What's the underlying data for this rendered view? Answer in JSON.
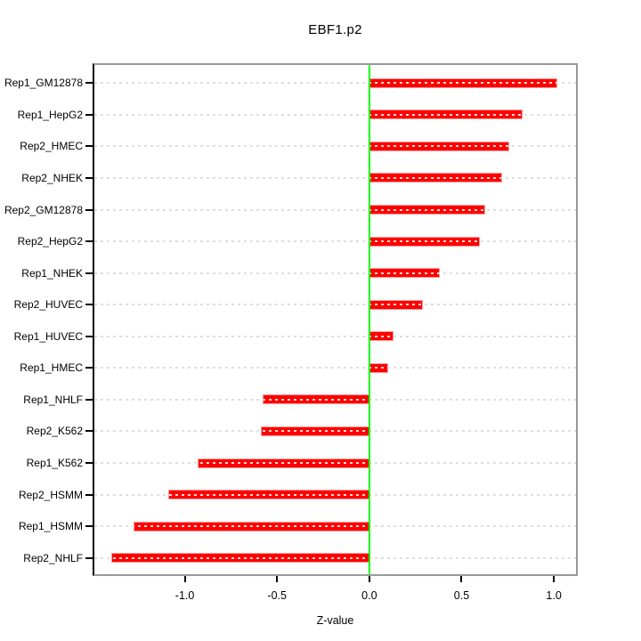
{
  "figure": {
    "title": "EBF1.p2",
    "xlabel": "Z-value"
  },
  "chart_data": {
    "type": "bar",
    "orientation": "horizontal",
    "title": "EBF1.p2",
    "xlabel": "Z-value",
    "ylabel": "",
    "categories": [
      "Rep1_GM12878",
      "Rep1_HepG2",
      "Rep2_HMEC",
      "Rep2_NHEK",
      "Rep2_GM12878",
      "Rep2_HepG2",
      "Rep1_NHEK",
      "Rep2_HUVEC",
      "Rep1_HUVEC",
      "Rep1_HMEC",
      "Rep1_NHLF",
      "Rep2_K562",
      "Rep1_K562",
      "Rep2_HSMM",
      "Rep1_HSMM",
      "Rep2_NHLF"
    ],
    "values": [
      1.02,
      0.83,
      0.76,
      0.72,
      0.63,
      0.6,
      0.38,
      0.29,
      0.13,
      0.1,
      -0.58,
      -0.59,
      -0.93,
      -1.09,
      -1.28,
      -1.4
    ],
    "x_ticks": [
      -1.0,
      -0.5,
      0.0,
      0.5,
      1.0
    ],
    "x_tick_labels": [
      "-1.0",
      "-0.5",
      "0.0",
      "0.5",
      "1.0"
    ],
    "xlim": [
      -1.49,
      1.12
    ],
    "zero_line_at": 0.0,
    "grid": "dotted horizontal gridline across each category row",
    "legend": null,
    "colors": {
      "bar_fill": "#ff0000",
      "bar_border": "#ff9a9a",
      "zero_line": "#00ff00",
      "gridline": "#dedede",
      "box_border": "#999999",
      "axis_line": "#000000",
      "text": "#000000",
      "background": "#ffffff"
    }
  }
}
